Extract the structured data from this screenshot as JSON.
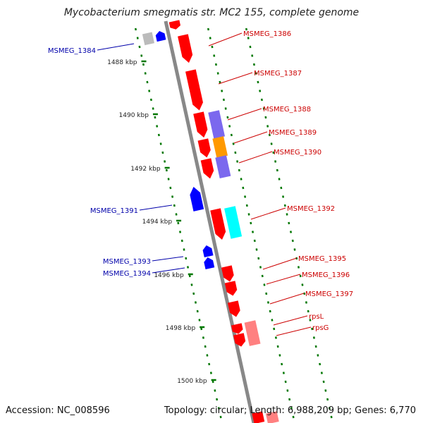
{
  "title": "Mycobacterium smegmatis str. MC2 155, complete genome",
  "footer": {
    "accession": "Accession: NC_008596",
    "summary": "Topology: circular; Length: 6,988,209 bp; Genes: 6,770"
  },
  "colors": {
    "forward_gene": "#ff0000",
    "reverse_gene": "#0000ff",
    "label_forward": "#cc0000",
    "label_reverse": "#0000aa",
    "backbone": "#888888",
    "tick": "#007700",
    "purple": "#7b68ee",
    "orange": "#ff9900",
    "cyan": "#00ffff",
    "pink": "#ff8080",
    "gray_gene": "#bbbbbb"
  },
  "scale_ticks": [
    "1488 kbp",
    "1490 kbp",
    "1492 kbp",
    "1494 kbp",
    "1496 kbp",
    "1498 kbp",
    "1500 kbp"
  ],
  "gene_labels_forward": [
    "MSMEG_1386",
    "MSMEG_1387",
    "MSMEG_1388",
    "MSMEG_1389",
    "MSMEG_1390",
    "MSMEG_1392",
    "MSMEG_1395",
    "MSMEG_1396",
    "MSMEG_1397",
    "rpsL",
    "rpsG"
  ],
  "gene_labels_reverse": [
    "MSMEG_1384",
    "MSMEG_1391",
    "MSMEG_1393",
    "MSMEG_1394"
  ]
}
